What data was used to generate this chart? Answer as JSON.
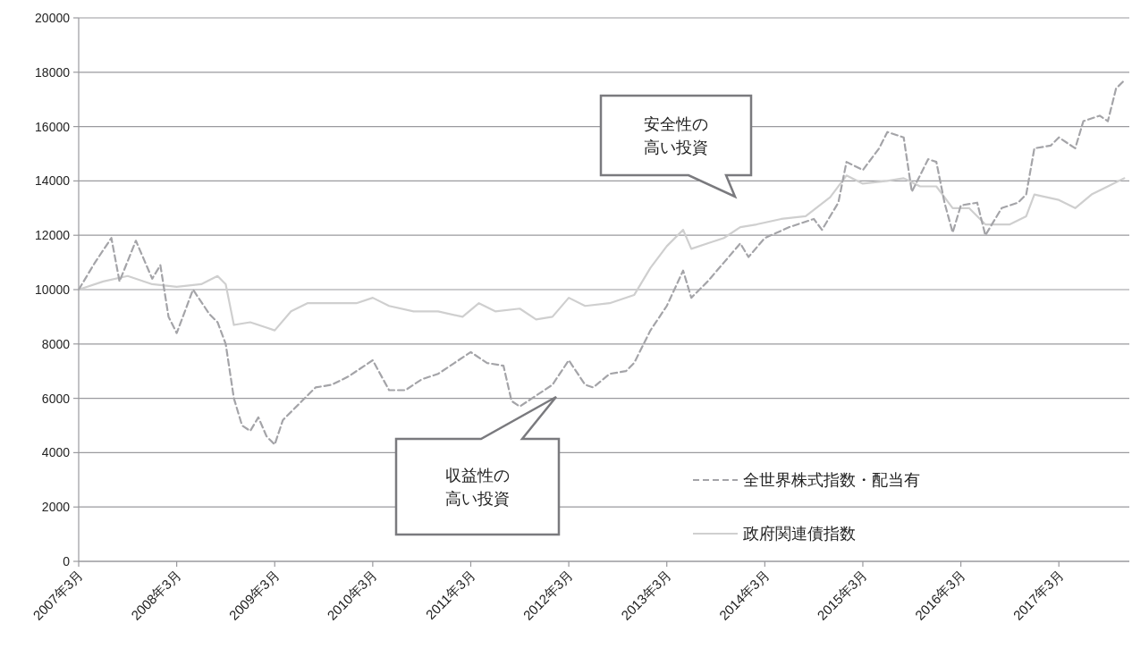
{
  "chart_data": {
    "type": "line",
    "x": [
      "2007-03",
      "2007-05",
      "2007-07",
      "2007-08",
      "2007-10",
      "2007-12",
      "2008-01",
      "2008-02",
      "2008-03",
      "2008-05",
      "2008-07",
      "2008-08",
      "2008-09",
      "2008-10",
      "2008-11",
      "2008-12",
      "2009-01",
      "2009-02",
      "2009-03",
      "2009-04",
      "2009-06",
      "2009-08",
      "2009-10",
      "2009-12",
      "2010-01",
      "2010-03",
      "2010-05",
      "2010-07",
      "2010-09",
      "2010-11",
      "2011-01",
      "2011-03",
      "2011-05",
      "2011-07",
      "2011-08",
      "2011-09",
      "2011-11",
      "2012-01",
      "2012-03",
      "2012-05",
      "2012-06",
      "2012-08",
      "2012-10",
      "2012-11",
      "2013-01",
      "2013-03",
      "2013-05",
      "2013-06",
      "2013-08",
      "2013-10",
      "2013-12",
      "2014-01",
      "2014-03",
      "2014-06",
      "2014-09",
      "2014-10",
      "2014-12",
      "2015-01",
      "2015-03",
      "2015-05",
      "2015-06",
      "2015-08",
      "2015-09",
      "2015-11",
      "2015-12",
      "2016-01",
      "2016-02",
      "2016-03",
      "2016-05",
      "2016-06",
      "2016-08",
      "2016-10",
      "2016-11",
      "2016-12",
      "2017-02",
      "2017-03",
      "2017-05",
      "2017-06",
      "2017-08",
      "2017-09",
      "2017-10",
      "2017-11"
    ],
    "series": [
      {
        "name": "全世界株式指数・配当有",
        "color": "#a4a4a8",
        "line_style": "dashed",
        "values": [
          10000,
          11000,
          11900,
          10300,
          11800,
          10400,
          10900,
          9000,
          8400,
          10000,
          9100,
          8800,
          8000,
          6000,
          5000,
          4800,
          5300,
          4600,
          4300,
          5200,
          5800,
          6400,
          6500,
          6800,
          7000,
          7400,
          6300,
          6300,
          6700,
          6900,
          7300,
          7700,
          7300,
          7200,
          5900,
          5700,
          6100,
          6500,
          7400,
          6500,
          6400,
          6900,
          7000,
          7300,
          8500,
          9400,
          10700,
          9700,
          10300,
          11000,
          11700,
          11200,
          11900,
          12300,
          12600,
          12200,
          13200,
          14700,
          14400,
          15200,
          15800,
          15600,
          13600,
          14800,
          14700,
          13200,
          12100,
          13100,
          13200,
          12000,
          13000,
          13200,
          13500,
          15200,
          15300,
          15600,
          15200,
          16200,
          16400,
          16200,
          17400,
          17700
        ]
      },
      {
        "name": "政府関連債指数",
        "color": "#cfcfcf",
        "line_style": "solid",
        "x": [
          "2007-03",
          "2007-06",
          "2007-09",
          "2007-12",
          "2008-03",
          "2008-06",
          "2008-08",
          "2008-09",
          "2008-10",
          "2008-12",
          "2009-02",
          "2009-03",
          "2009-05",
          "2009-07",
          "2009-10",
          "2010-01",
          "2010-03",
          "2010-05",
          "2010-08",
          "2010-11",
          "2011-02",
          "2011-04",
          "2011-06",
          "2011-09",
          "2011-11",
          "2012-01",
          "2012-03",
          "2012-05",
          "2012-08",
          "2012-11",
          "2013-01",
          "2013-03",
          "2013-05",
          "2013-06",
          "2013-08",
          "2013-10",
          "2013-12",
          "2014-02",
          "2014-05",
          "2014-08",
          "2014-11",
          "2015-01",
          "2015-03",
          "2015-06",
          "2015-08",
          "2015-10",
          "2015-12",
          "2016-02",
          "2016-04",
          "2016-06",
          "2016-09",
          "2016-11",
          "2016-12",
          "2017-03",
          "2017-05",
          "2017-07",
          "2017-09",
          "2017-11"
        ],
        "values": [
          10000,
          10300,
          10500,
          10200,
          10100,
          10200,
          10500,
          10200,
          8700,
          8800,
          8600,
          8500,
          9200,
          9500,
          9500,
          9500,
          9700,
          9400,
          9200,
          9200,
          9000,
          9500,
          9200,
          9300,
          8900,
          9000,
          9700,
          9400,
          9500,
          9800,
          10800,
          11600,
          12200,
          11500,
          11700,
          11900,
          12300,
          12400,
          12600,
          12700,
          13400,
          14200,
          13900,
          14000,
          14100,
          13800,
          13800,
          13000,
          13000,
          12400,
          12400,
          12700,
          13500,
          13300,
          13000,
          13500,
          13800,
          14100
        ]
      }
    ],
    "xlim": [
      "2007-03",
      "2017-11-20"
    ],
    "xticks": [
      {
        "value": "2007-03",
        "label": "2007年3月"
      },
      {
        "value": "2008-03",
        "label": "2008年3月"
      },
      {
        "value": "2009-03",
        "label": "2009年3月"
      },
      {
        "value": "2010-03",
        "label": "2010年3月"
      },
      {
        "value": "2011-03",
        "label": "2011年3月"
      },
      {
        "value": "2012-03",
        "label": "2012年3月"
      },
      {
        "value": "2013-03",
        "label": "2013年3月"
      },
      {
        "value": "2014-03",
        "label": "2014年3月"
      },
      {
        "value": "2015-03",
        "label": "2015年3月"
      },
      {
        "value": "2016-03",
        "label": "2016年3月"
      },
      {
        "value": "2017-03",
        "label": "2017年3月"
      }
    ],
    "ylim": [
      0,
      20000
    ],
    "yticks": [
      0,
      2000,
      4000,
      6000,
      8000,
      10000,
      12000,
      14000,
      16000,
      18000,
      20000
    ],
    "grid": "y",
    "legend": "bottom right",
    "annotations": [
      "安全性の高い投資",
      "収益性の高い投資"
    ]
  }
}
